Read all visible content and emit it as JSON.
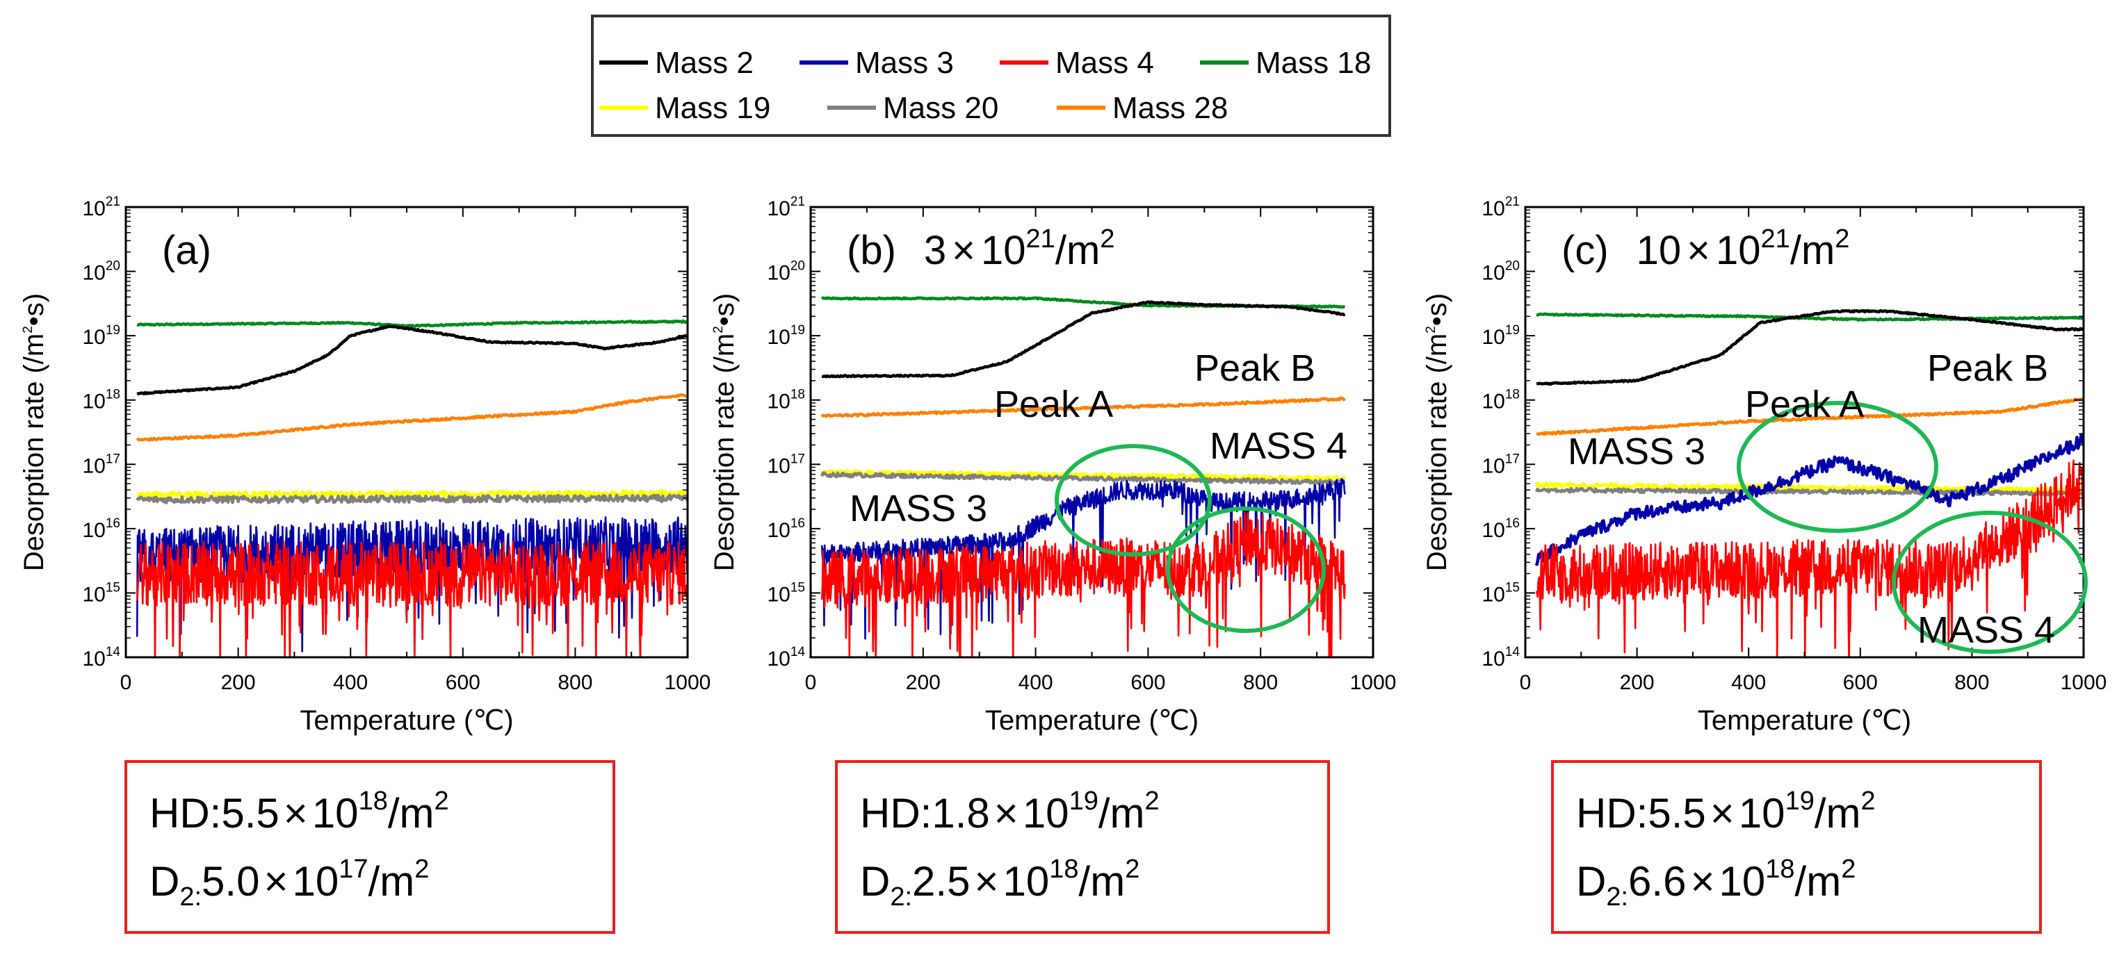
{
  "legend": {
    "row1": [
      {
        "label": "Mass 2",
        "color": "#000000"
      },
      {
        "label": "Mass 3",
        "color": "#0000a8"
      },
      {
        "label": "Mass 4",
        "color": "#ff0000"
      },
      {
        "label": "Mass 18",
        "color": "#008a1e"
      }
    ],
    "row2": [
      {
        "label": "Mass 19",
        "color": "#ffff00"
      },
      {
        "label": "Mass 20",
        "color": "#808080"
      },
      {
        "label": "Mass 28",
        "color": "#ff8000"
      }
    ]
  },
  "annotation_color": "#1db954",
  "box_color": "#e8201e",
  "chart_data": [
    {
      "type": "line",
      "panel_label": "(a)",
      "fluence": null,
      "xlabel": "Temperature (℃)",
      "ylabel_main": "Desorption rate (/m",
      "ylabel_sup": "2",
      "ylabel_tail": "•s)",
      "xlim": [
        0,
        1000
      ],
      "ylim_log10": [
        14,
        21
      ],
      "y_scale": "log",
      "xticks": [
        "0",
        "200",
        "400",
        "600",
        "800",
        "1000"
      ],
      "yticks": [
        {
          "base": "10",
          "exp": "14"
        },
        {
          "base": "10",
          "exp": "15"
        },
        {
          "base": "10",
          "exp": "16"
        },
        {
          "base": "10",
          "exp": "17"
        },
        {
          "base": "10",
          "exp": "18"
        },
        {
          "base": "10",
          "exp": "19"
        },
        {
          "base": "10",
          "exp": "20"
        },
        {
          "base": "10",
          "exp": "21"
        }
      ],
      "series": [
        {
          "name": "Mass 18",
          "log10_points": [
            [
              20,
              19.17
            ],
            [
              400,
              19.2
            ],
            [
              500,
              19.15
            ],
            [
              700,
              19.2
            ],
            [
              1000,
              19.22
            ]
          ],
          "noise": 0.01
        },
        {
          "name": "Mass 2",
          "log10_points": [
            [
              20,
              18.1
            ],
            [
              200,
              18.2
            ],
            [
              300,
              18.45
            ],
            [
              360,
              18.7
            ],
            [
              400,
              19.0
            ],
            [
              470,
              19.15
            ],
            [
              550,
              19.05
            ],
            [
              650,
              18.9
            ],
            [
              800,
              18.88
            ],
            [
              850,
              18.8
            ],
            [
              950,
              18.9
            ],
            [
              1000,
              19.0
            ]
          ],
          "noise": 0.01
        },
        {
          "name": "Mass 28",
          "log10_points": [
            [
              20,
              17.38
            ],
            [
              200,
              17.45
            ],
            [
              400,
              17.62
            ],
            [
              600,
              17.72
            ],
            [
              800,
              17.82
            ],
            [
              900,
              17.98
            ],
            [
              1000,
              18.08
            ]
          ],
          "noise": 0.015
        },
        {
          "name": "Mass 19",
          "log10_points": [
            [
              20,
              16.53
            ],
            [
              1000,
              16.55
            ]
          ],
          "noise": 0.04
        },
        {
          "name": "Mass 20",
          "log10_points": [
            [
              20,
              16.45
            ],
            [
              1000,
              16.47
            ]
          ],
          "noise": 0.05
        },
        {
          "name": "Mass 3",
          "log10_points": [
            [
              20,
              15.55
            ],
            [
              300,
              15.65
            ],
            [
              1000,
              15.75
            ]
          ],
          "noise": 0.45,
          "dips": true
        },
        {
          "name": "Mass 4",
          "log10_points": [
            [
              20,
              15.3
            ],
            [
              1000,
              15.3
            ]
          ],
          "noise": 0.5,
          "dips": true
        }
      ],
      "annotations": [],
      "result_box": [
        {
          "species": "HD",
          "sub": "",
          "value": "5.5",
          "times": "×",
          "base": "10",
          "exp": "18",
          "unit": "/m",
          "unit_exp": "2"
        },
        {
          "species": "D",
          "sub": "2",
          "value": "5.0",
          "times": "×",
          "base": "10",
          "exp": "17",
          "unit": "/m",
          "unit_exp": "2"
        }
      ]
    },
    {
      "type": "line",
      "panel_label": "(b)",
      "fluence": {
        "value": "3",
        "times": "×",
        "base": "10",
        "exp": "21",
        "unit": "/m",
        "unit_exp": "2"
      },
      "xlabel": "Temperature (℃)",
      "ylabel_main": "Desorption rate (/m",
      "ylabel_sup": "2",
      "ylabel_tail": "•s)",
      "xlim": [
        0,
        1000
      ],
      "ylim_log10": [
        14,
        21
      ],
      "y_scale": "log",
      "xticks": [
        "0",
        "200",
        "400",
        "600",
        "800",
        "1000"
      ],
      "yticks": [
        {
          "base": "10",
          "exp": "14"
        },
        {
          "base": "10",
          "exp": "15"
        },
        {
          "base": "10",
          "exp": "16"
        },
        {
          "base": "10",
          "exp": "17"
        },
        {
          "base": "10",
          "exp": "18"
        },
        {
          "base": "10",
          "exp": "19"
        },
        {
          "base": "10",
          "exp": "20"
        },
        {
          "base": "10",
          "exp": "21"
        }
      ],
      "series": [
        {
          "name": "Mass 18",
          "log10_points": [
            [
              20,
              19.58
            ],
            [
              400,
              19.58
            ],
            [
              600,
              19.47
            ],
            [
              950,
              19.45
            ]
          ],
          "noise": 0.01
        },
        {
          "name": "Mass 2",
          "log10_points": [
            [
              20,
              18.37
            ],
            [
              250,
              18.38
            ],
            [
              350,
              18.6
            ],
            [
              430,
              19.0
            ],
            [
              500,
              19.35
            ],
            [
              600,
              19.52
            ],
            [
              700,
              19.48
            ],
            [
              850,
              19.45
            ],
            [
              950,
              19.33
            ]
          ],
          "noise": 0.01
        },
        {
          "name": "Mass 28",
          "log10_points": [
            [
              20,
              17.75
            ],
            [
              400,
              17.85
            ],
            [
              700,
              17.93
            ],
            [
              950,
              18.02
            ]
          ],
          "noise": 0.015
        },
        {
          "name": "Mass 19",
          "log10_points": [
            [
              20,
              16.88
            ],
            [
              950,
              16.78
            ]
          ],
          "noise": 0.03
        },
        {
          "name": "Mass 20",
          "log10_points": [
            [
              20,
              16.84
            ],
            [
              950,
              16.72
            ]
          ],
          "noise": 0.03
        },
        {
          "name": "Mass 3",
          "log10_points": [
            [
              20,
              15.6
            ],
            [
              200,
              15.7
            ],
            [
              350,
              15.8
            ],
            [
              450,
              16.3
            ],
            [
              550,
              16.6
            ],
            [
              650,
              16.6
            ],
            [
              720,
              16.4
            ],
            [
              850,
              16.45
            ],
            [
              950,
              16.65
            ]
          ],
          "noise": 0.15,
          "dips": true
        },
        {
          "name": "Mass 4",
          "log10_points": [
            [
              20,
              15.2
            ],
            [
              500,
              15.4
            ],
            [
              700,
              15.4
            ],
            [
              780,
              15.85
            ],
            [
              900,
              15.5
            ],
            [
              950,
              15.3
            ]
          ],
          "noise": 0.45,
          "dips": true
        }
      ],
      "annotations": [
        {
          "text": "Peak A"
        },
        {
          "text": "Peak B"
        },
        {
          "text": "MASS 4"
        },
        {
          "text": "MASS 3"
        }
      ],
      "result_box": [
        {
          "species": "HD",
          "sub": "",
          "value": "1.8",
          "times": "×",
          "base": "10",
          "exp": "19",
          "unit": "/m",
          "unit_exp": "2"
        },
        {
          "species": "D",
          "sub": "2",
          "value": "2.5",
          "times": "×",
          "base": "10",
          "exp": "18",
          "unit": "/m",
          "unit_exp": "2"
        }
      ]
    },
    {
      "type": "line",
      "panel_label": "(c)",
      "fluence": {
        "value": "10",
        "times": "×",
        "base": "10",
        "exp": "21",
        "unit": "/m",
        "unit_exp": "2"
      },
      "xlabel": "Temperature (℃)",
      "ylabel_main": "Desorption rate (/m",
      "ylabel_sup": "2",
      "ylabel_tail": "•s)",
      "xlim": [
        0,
        1000
      ],
      "ylim_log10": [
        14,
        21
      ],
      "y_scale": "log",
      "xticks": [
        "0",
        "200",
        "400",
        "600",
        "800",
        "1000"
      ],
      "yticks": [
        {
          "base": "10",
          "exp": "14"
        },
        {
          "base": "10",
          "exp": "15"
        },
        {
          "base": "10",
          "exp": "16"
        },
        {
          "base": "10",
          "exp": "17"
        },
        {
          "base": "10",
          "exp": "18"
        },
        {
          "base": "10",
          "exp": "19"
        },
        {
          "base": "10",
          "exp": "20"
        },
        {
          "base": "10",
          "exp": "21"
        }
      ],
      "series": [
        {
          "name": "Mass 18",
          "log10_points": [
            [
              20,
              19.33
            ],
            [
              400,
              19.3
            ],
            [
              600,
              19.25
            ],
            [
              1000,
              19.28
            ]
          ],
          "noise": 0.01
        },
        {
          "name": "Mass 2",
          "log10_points": [
            [
              20,
              18.25
            ],
            [
              200,
              18.3
            ],
            [
              350,
              18.7
            ],
            [
              420,
              19.2
            ],
            [
              550,
              19.38
            ],
            [
              650,
              19.38
            ],
            [
              800,
              19.25
            ],
            [
              950,
              19.1
            ],
            [
              1000,
              19.1
            ]
          ],
          "noise": 0.01
        },
        {
          "name": "Mass 28",
          "log10_points": [
            [
              20,
              17.47
            ],
            [
              400,
              17.67
            ],
            [
              700,
              17.77
            ],
            [
              850,
              17.82
            ],
            [
              1000,
              18.02
            ]
          ],
          "noise": 0.015
        },
        {
          "name": "Mass 19",
          "log10_points": [
            [
              20,
              16.68
            ],
            [
              1000,
              16.6
            ]
          ],
          "noise": 0.03
        },
        {
          "name": "Mass 20",
          "log10_points": [
            [
              20,
              16.6
            ],
            [
              1000,
              16.55
            ]
          ],
          "noise": 0.03
        },
        {
          "name": "Mass 3",
          "log10_points": [
            [
              20,
              15.5
            ],
            [
              100,
              15.9
            ],
            [
              200,
              16.25
            ],
            [
              350,
              16.4
            ],
            [
              450,
              16.7
            ],
            [
              560,
              17.05
            ],
            [
              650,
              16.8
            ],
            [
              700,
              16.65
            ],
            [
              760,
              16.45
            ],
            [
              850,
              16.75
            ],
            [
              1000,
              17.38
            ]
          ],
          "noise": 0.1,
          "dips": false
        },
        {
          "name": "Mass 4",
          "log10_points": [
            [
              20,
              15.3
            ],
            [
              600,
              15.4
            ],
            [
              750,
              15.35
            ],
            [
              850,
              15.8
            ],
            [
              950,
              16.4
            ],
            [
              1000,
              16.8
            ]
          ],
          "noise": 0.45,
          "dips": true
        }
      ],
      "annotations": [
        {
          "text": "MASS 3"
        },
        {
          "text": "Peak A"
        },
        {
          "text": "Peak B"
        },
        {
          "text": "MASS 4"
        }
      ],
      "result_box": [
        {
          "species": "HD",
          "sub": "",
          "value": "5.5",
          "times": "×",
          "base": "10",
          "exp": "19",
          "unit": "/m",
          "unit_exp": "2"
        },
        {
          "species": "D",
          "sub": "2",
          "value": "6.6",
          "times": "×",
          "base": "10",
          "exp": "18",
          "unit": "/m",
          "unit_exp": "2"
        }
      ]
    }
  ]
}
